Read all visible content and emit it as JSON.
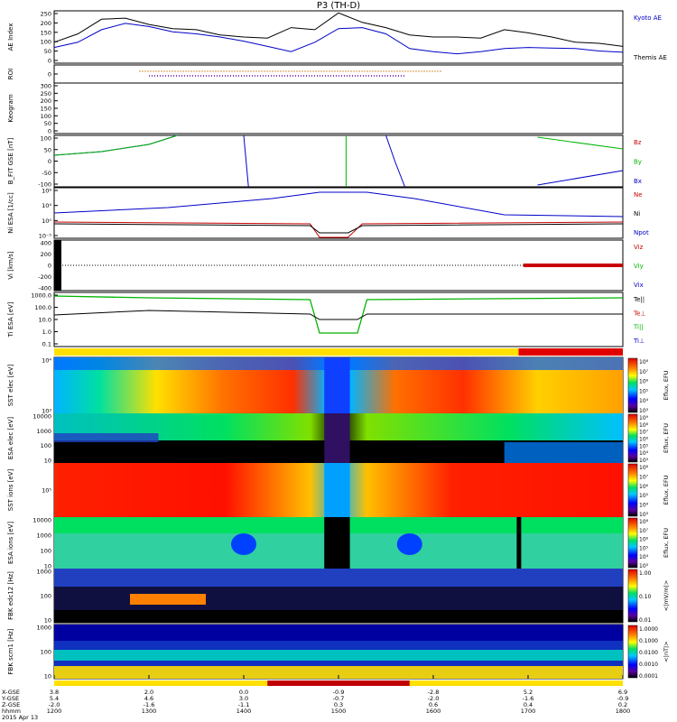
{
  "title": "P3 (TH-D)",
  "chart_data": {
    "type": "line",
    "title": "P3 (TH-D)",
    "date": "2015 Apr 13",
    "time_axis": {
      "labels": [
        "1200",
        "1300",
        "1400",
        "1500",
        "1600",
        "1700",
        "1800"
      ],
      "row_labels": [
        "X-GSE",
        "Y-GSE",
        "Z-GSE",
        "hhmm"
      ],
      "rows": [
        [
          "3.8",
          "2.0",
          "0.0",
          "-0.9",
          "-2.8",
          "5.2",
          "6.9"
        ],
        [
          "5.4",
          "4.6",
          "3.0",
          "-0.7",
          "-2.0",
          "-1.6",
          "-0.9"
        ],
        [
          "-2.0",
          "-1.6",
          "-1.1",
          "0.3",
          "0.6",
          "0.4",
          "0.2"
        ],
        [
          "1200",
          "1300",
          "1400",
          "1500",
          "1600",
          "1700",
          "1800"
        ]
      ]
    },
    "panels": [
      {
        "id": "ae",
        "ylabel": "AE Index",
        "yticks": [
          "250",
          "200",
          "150",
          "100",
          "50",
          "0"
        ],
        "legend": [
          {
            "name": "Kyoto AE",
            "color": "#0000c8"
          },
          {
            "name": "Themis AE",
            "color": "#000000"
          }
        ],
        "series": [
          {
            "name": "Kyoto AE",
            "x": [
              12.0,
              12.25,
              12.5,
              12.75,
              13.0,
              13.25,
              13.5,
              13.75,
              14.0,
              14.25,
              14.5,
              14.75,
              15.0,
              15.25,
              15.5,
              15.75,
              16.0,
              16.25,
              16.5,
              16.75,
              17.0,
              17.25,
              17.5,
              17.75,
              18.0
            ],
            "values": [
              75,
              100,
              160,
              190,
              175,
              150,
              140,
              125,
              105,
              80,
              55,
              100,
              165,
              170,
              140,
              70,
              55,
              45,
              55,
              70,
              75,
              72,
              70,
              58,
              52
            ]
          },
          {
            "name": "Themis AE",
            "x": [
              12.0,
              12.25,
              12.5,
              12.75,
              13.0,
              13.25,
              13.5,
              13.75,
              14.0,
              14.25,
              14.5,
              14.75,
              15.0,
              15.25,
              15.5,
              15.75,
              16.0,
              16.25,
              16.5,
              16.75,
              17.0,
              17.25,
              17.5,
              17.75,
              18.0
            ],
            "values": [
              100,
              140,
              210,
              215,
              185,
              165,
              160,
              135,
              125,
              120,
              170,
              160,
              240,
              195,
              170,
              135,
              125,
              125,
              120,
              160,
              145,
              125,
              100,
              95,
              80
            ]
          }
        ]
      },
      {
        "id": "roi",
        "ylabel": "ROI",
        "yticks": [
          "0"
        ]
      },
      {
        "id": "keogram",
        "ylabel": "Keogram",
        "yticks": [
          "300",
          "250",
          "200",
          "150",
          "100",
          "50",
          "0"
        ]
      },
      {
        "id": "bfit",
        "ylabel": "B_FIT GSE [nT]",
        "yticks": [
          "100",
          "50",
          "0",
          "-50",
          "-100"
        ],
        "legend": [
          {
            "name": "Bz",
            "color": "#c80000"
          },
          {
            "name": "By",
            "color": "#00b400"
          },
          {
            "name": "Bx",
            "color": "#0000c8"
          }
        ]
      },
      {
        "id": "ni",
        "ylabel": "Ni ESA [1/cc]",
        "yticks": [
          "10⁸",
          "10⁴",
          "10⁰",
          "10⁻⁵"
        ],
        "legend": [
          {
            "name": "Ne",
            "color": "#c80000"
          },
          {
            "name": "Ni",
            "color": "#000000"
          },
          {
            "name": "Npot",
            "color": "#0000c8"
          }
        ]
      },
      {
        "id": "vi",
        "ylabel": "Vi [km/s]",
        "yticks": [
          "400",
          "200",
          "0",
          "-200",
          "-400"
        ],
        "legend": [
          {
            "name": "Viz",
            "color": "#c80000"
          },
          {
            "name": "Viy",
            "color": "#00b400"
          },
          {
            "name": "Vix",
            "color": "#0000c8"
          }
        ]
      },
      {
        "id": "ti",
        "ylabel": "Ti ESA [eV]",
        "yticks": [
          "1000.0",
          "100.0",
          "10.0",
          "1.0",
          "0.1"
        ],
        "legend": [
          {
            "name": "Te||",
            "color": "#000000"
          },
          {
            "name": "Te⊥",
            "color": "#c80000"
          },
          {
            "name": "Ti||",
            "color": "#00b400"
          },
          {
            "name": "Ti⊥",
            "color": "#0000c8"
          }
        ]
      },
      {
        "id": "sst_e",
        "ylabel": "SST elec [eV]",
        "yticks": [
          "10⁴",
          "10³"
        ],
        "cbar_label": "Eflux, EFU",
        "cbar_ticks": [
          "10⁸",
          "10⁷",
          "10⁶",
          "10⁵",
          "10⁴",
          "10³"
        ]
      },
      {
        "id": "esa_e",
        "ylabel": "ESA elec [eV]",
        "yticks": [
          "10000",
          "1000",
          "100",
          "10"
        ],
        "cbar_label": "Eflux, EFU",
        "cbar_ticks": [
          "10⁹",
          "10⁸",
          "10⁷",
          "10⁶",
          "10⁵",
          "10⁴",
          "10³"
        ]
      },
      {
        "id": "sst_i",
        "ylabel": "SST ions [eV]",
        "yticks": [
          "10⁵"
        ],
        "cbar_label": "Eflux, EFU",
        "cbar_ticks": [
          "10⁸",
          "10⁷",
          "10⁶",
          "10⁵",
          "10⁴",
          "10³"
        ]
      },
      {
        "id": "esa_i",
        "ylabel": "ESA ions [eV]",
        "yticks": [
          "10000",
          "1000",
          "100",
          "10"
        ],
        "cbar_label": "Eflux, EFU",
        "cbar_ticks": [
          "10⁸",
          "10⁷",
          "10⁶",
          "10⁵",
          "10⁴",
          "10³"
        ]
      },
      {
        "id": "fbk_e",
        "ylabel": "FBK edc12 [Hz]",
        "yticks": [
          "1000",
          "100",
          "10"
        ],
        "cbar_label": "<|mV/m|>",
        "cbar_ticks": [
          "1.00",
          "0.10",
          "0.01"
        ]
      },
      {
        "id": "fbk_b",
        "ylabel": "FBK scm1 [Hz]",
        "yticks": [
          "1000",
          "100",
          "10"
        ],
        "cbar_label": "<|nT|>",
        "cbar_ticks": [
          "1.0000",
          "0.1000",
          "0.0100",
          "0.0010",
          "0.0001"
        ]
      }
    ]
  }
}
